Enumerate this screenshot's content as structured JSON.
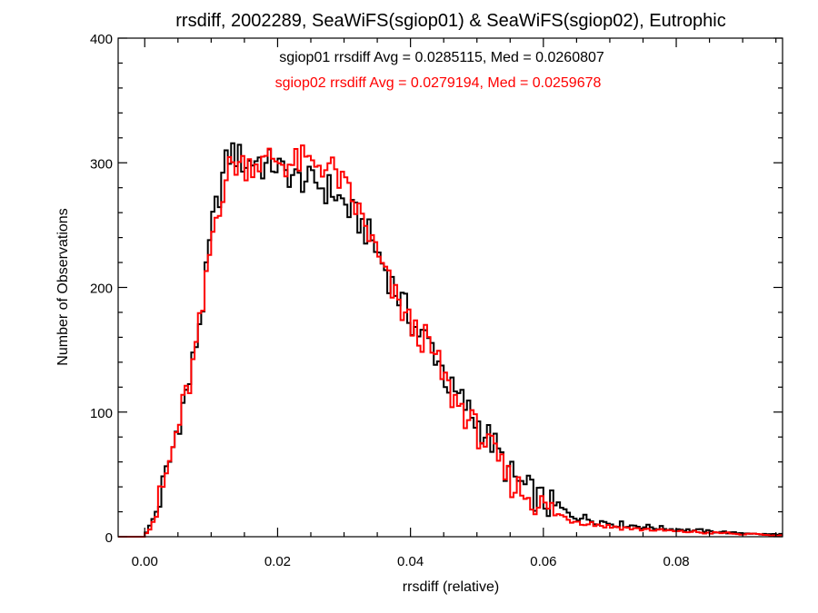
{
  "chart_data": {
    "type": "histogram",
    "title": "rrsdiff, 2002289, SeaWiFS(sgiop01) & SeaWiFS(sgiop02), Eutrophic",
    "xlabel": "rrsdiff (relative)",
    "ylabel": "Number of Observations",
    "xlim": [
      -0.004,
      0.096
    ],
    "ylim": [
      0,
      400
    ],
    "xticks": [
      "0.00",
      "0.02",
      "0.04",
      "0.06",
      "0.08"
    ],
    "xtick_values": [
      0.0,
      0.02,
      0.04,
      0.06,
      0.08
    ],
    "xminor_step": 0.005,
    "yticks": [
      "0",
      "100",
      "200",
      "300",
      "400"
    ],
    "ytick_values": [
      0,
      100,
      200,
      300,
      400
    ],
    "yminor_step": 20,
    "grid": false,
    "bin_width": 0.0005,
    "annotations": [
      {
        "text": "sgiop01 rrsdiff Avg = 0.0285115, Med = 0.0260807",
        "color": "#000000"
      },
      {
        "text": "sgiop02 rrsdiff Avg = 0.0279194, Med = 0.0259678",
        "color": "#ff0000"
      }
    ],
    "series": [
      {
        "name": "sgiop01",
        "color": "#000000",
        "points": [
          [
            -0.004,
            0
          ],
          [
            0.0,
            2
          ],
          [
            0.001,
            10
          ],
          [
            0.002,
            25
          ],
          [
            0.003,
            45
          ],
          [
            0.004,
            65
          ],
          [
            0.005,
            90
          ],
          [
            0.006,
            110
          ],
          [
            0.007,
            130
          ],
          [
            0.008,
            165
          ],
          [
            0.009,
            195
          ],
          [
            0.01,
            245
          ],
          [
            0.011,
            270
          ],
          [
            0.012,
            295
          ],
          [
            0.013,
            310
          ],
          [
            0.014,
            305
          ],
          [
            0.015,
            300
          ],
          [
            0.016,
            300
          ],
          [
            0.017,
            305
          ],
          [
            0.018,
            295
          ],
          [
            0.019,
            300
          ],
          [
            0.02,
            298
          ],
          [
            0.021,
            290
          ],
          [
            0.022,
            292
          ],
          [
            0.023,
            285
          ],
          [
            0.024,
            288
          ],
          [
            0.025,
            283
          ],
          [
            0.026,
            285
          ],
          [
            0.027,
            278
          ],
          [
            0.028,
            280
          ],
          [
            0.029,
            272
          ],
          [
            0.03,
            268
          ],
          [
            0.031,
            260
          ],
          [
            0.032,
            255
          ],
          [
            0.033,
            248
          ],
          [
            0.034,
            240
          ],
          [
            0.035,
            228
          ],
          [
            0.036,
            218
          ],
          [
            0.037,
            205
          ],
          [
            0.038,
            195
          ],
          [
            0.039,
            185
          ],
          [
            0.04,
            175
          ],
          [
            0.041,
            165
          ],
          [
            0.042,
            160
          ],
          [
            0.043,
            155
          ],
          [
            0.044,
            145
          ],
          [
            0.045,
            132
          ],
          [
            0.046,
            118
          ],
          [
            0.047,
            112
          ],
          [
            0.048,
            108
          ],
          [
            0.049,
            98
          ],
          [
            0.05,
            92
          ],
          [
            0.051,
            85
          ],
          [
            0.052,
            78
          ],
          [
            0.053,
            70
          ],
          [
            0.054,
            58
          ],
          [
            0.055,
            50
          ],
          [
            0.056,
            45
          ],
          [
            0.057,
            40
          ],
          [
            0.058,
            36
          ],
          [
            0.059,
            32
          ],
          [
            0.06,
            28
          ],
          [
            0.061,
            25
          ],
          [
            0.062,
            22
          ],
          [
            0.063,
            20
          ],
          [
            0.064,
            18
          ],
          [
            0.065,
            17
          ],
          [
            0.066,
            15
          ],
          [
            0.067,
            14
          ],
          [
            0.068,
            13
          ],
          [
            0.069,
            12
          ],
          [
            0.07,
            11
          ],
          [
            0.071,
            10
          ],
          [
            0.072,
            10
          ],
          [
            0.073,
            9
          ],
          [
            0.074,
            9
          ],
          [
            0.075,
            8
          ],
          [
            0.076,
            8
          ],
          [
            0.077,
            7
          ],
          [
            0.078,
            7
          ],
          [
            0.079,
            6
          ],
          [
            0.08,
            6
          ],
          [
            0.081,
            6
          ],
          [
            0.082,
            5
          ],
          [
            0.083,
            5
          ],
          [
            0.084,
            5
          ],
          [
            0.085,
            4
          ],
          [
            0.086,
            4
          ],
          [
            0.087,
            4
          ],
          [
            0.088,
            3
          ],
          [
            0.089,
            3
          ],
          [
            0.09,
            3
          ],
          [
            0.091,
            3
          ],
          [
            0.092,
            2
          ],
          [
            0.093,
            2
          ],
          [
            0.094,
            2
          ],
          [
            0.095,
            2
          ]
        ]
      },
      {
        "name": "sgiop02",
        "color": "#ff0000",
        "points": [
          [
            -0.004,
            0
          ],
          [
            0.0,
            2
          ],
          [
            0.001,
            9
          ],
          [
            0.002,
            24
          ],
          [
            0.003,
            44
          ],
          [
            0.004,
            64
          ],
          [
            0.005,
            88
          ],
          [
            0.006,
            108
          ],
          [
            0.007,
            128
          ],
          [
            0.008,
            160
          ],
          [
            0.009,
            190
          ],
          [
            0.01,
            238
          ],
          [
            0.011,
            262
          ],
          [
            0.012,
            285
          ],
          [
            0.013,
            298
          ],
          [
            0.014,
            300
          ],
          [
            0.015,
            298
          ],
          [
            0.016,
            300
          ],
          [
            0.017,
            302
          ],
          [
            0.018,
            298
          ],
          [
            0.019,
            305
          ],
          [
            0.02,
            302
          ],
          [
            0.021,
            300
          ],
          [
            0.022,
            298
          ],
          [
            0.023,
            300
          ],
          [
            0.024,
            302
          ],
          [
            0.025,
            298
          ],
          [
            0.026,
            300
          ],
          [
            0.027,
            298
          ],
          [
            0.028,
            295
          ],
          [
            0.029,
            290
          ],
          [
            0.03,
            280
          ],
          [
            0.031,
            272
          ],
          [
            0.032,
            262
          ],
          [
            0.033,
            252
          ],
          [
            0.034,
            240
          ],
          [
            0.035,
            225
          ],
          [
            0.036,
            212
          ],
          [
            0.037,
            200
          ],
          [
            0.038,
            188
          ],
          [
            0.039,
            180
          ],
          [
            0.04,
            170
          ],
          [
            0.041,
            162
          ],
          [
            0.042,
            160
          ],
          [
            0.043,
            150
          ],
          [
            0.044,
            140
          ],
          [
            0.045,
            128
          ],
          [
            0.046,
            115
          ],
          [
            0.047,
            108
          ],
          [
            0.048,
            102
          ],
          [
            0.049,
            92
          ],
          [
            0.05,
            85
          ],
          [
            0.051,
            78
          ],
          [
            0.052,
            70
          ],
          [
            0.053,
            62
          ],
          [
            0.054,
            52
          ],
          [
            0.055,
            45
          ],
          [
            0.056,
            40
          ],
          [
            0.057,
            36
          ],
          [
            0.058,
            32
          ],
          [
            0.059,
            28
          ],
          [
            0.06,
            24
          ],
          [
            0.061,
            21
          ],
          [
            0.062,
            18
          ],
          [
            0.063,
            16
          ],
          [
            0.064,
            14
          ],
          [
            0.065,
            13
          ],
          [
            0.066,
            12
          ],
          [
            0.067,
            11
          ],
          [
            0.068,
            10
          ],
          [
            0.069,
            9
          ],
          [
            0.07,
            8
          ],
          [
            0.071,
            8
          ],
          [
            0.072,
            7
          ],
          [
            0.073,
            7
          ],
          [
            0.074,
            6
          ],
          [
            0.075,
            6
          ],
          [
            0.076,
            6
          ],
          [
            0.077,
            5
          ],
          [
            0.078,
            5
          ],
          [
            0.079,
            5
          ],
          [
            0.08,
            4
          ],
          [
            0.081,
            4
          ],
          [
            0.082,
            4
          ],
          [
            0.083,
            4
          ],
          [
            0.084,
            3
          ],
          [
            0.085,
            3
          ],
          [
            0.086,
            3
          ],
          [
            0.087,
            3
          ],
          [
            0.088,
            3
          ],
          [
            0.089,
            2
          ],
          [
            0.09,
            2
          ],
          [
            0.091,
            2
          ],
          [
            0.092,
            2
          ],
          [
            0.093,
            2
          ],
          [
            0.094,
            1
          ],
          [
            0.095,
            1
          ]
        ]
      }
    ]
  }
}
